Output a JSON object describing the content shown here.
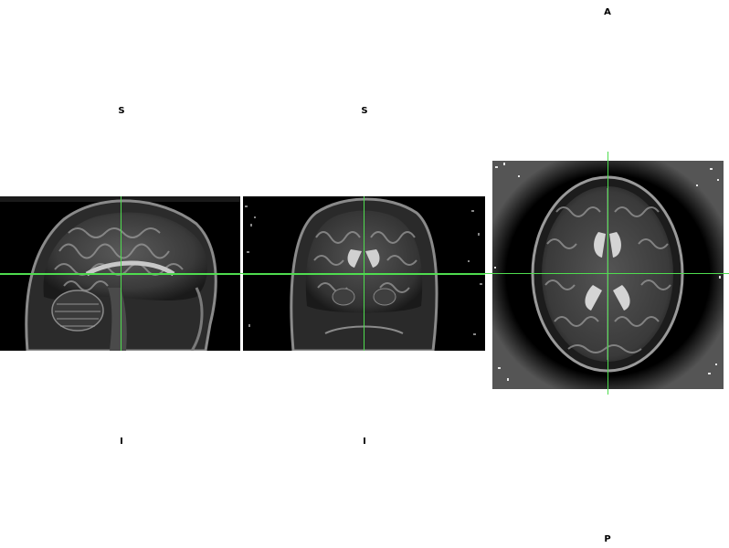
{
  "viewer": {
    "crosshair_color": "#4fdc4f",
    "background_color": "#ffffff",
    "image_background_color": "#000000"
  },
  "views": {
    "sagittal": {
      "top_label": "S",
      "bottom_label": "I"
    },
    "coronal": {
      "top_label": "S",
      "bottom_label": "I"
    },
    "axial": {
      "top_label": "A",
      "bottom_label": "P"
    }
  }
}
